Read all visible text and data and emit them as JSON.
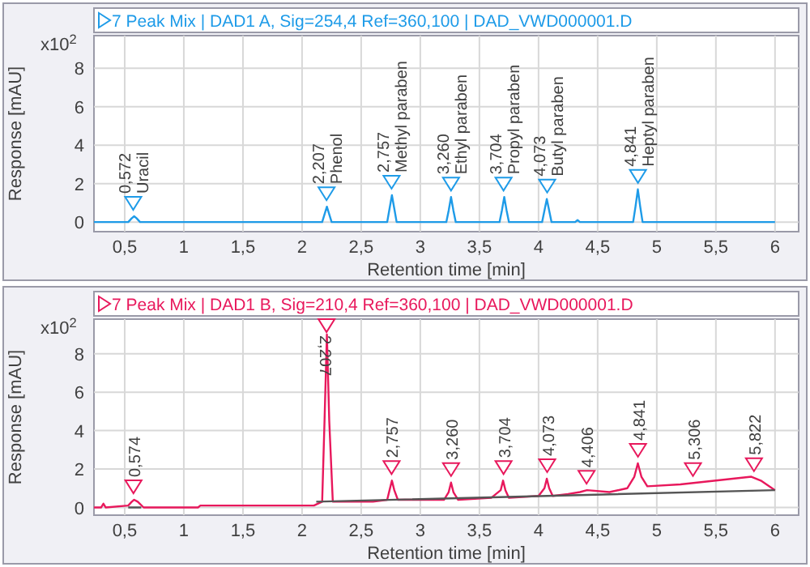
{
  "chart_data": [
    {
      "type": "line",
      "title": "7 Peak Mix | DAD1 A, Sig=254,4 Ref=360,100 | DAD_VWD000001.D",
      "xlabel": "Retention time [min]",
      "ylabel": "Response [mAU]",
      "xlim": [
        0.24,
        6.2
      ],
      "xticks": [
        {
          "value": 0.5,
          "label": "0,5"
        },
        1,
        {
          "value": 1.5,
          "label": "1,5"
        },
        2,
        {
          "value": 2.5,
          "label": "2,5"
        },
        3,
        {
          "value": 3.5,
          "label": "3,5"
        },
        4,
        {
          "value": 4.5,
          "label": "4,5"
        },
        5,
        {
          "value": 5.5,
          "label": "5,5"
        },
        6
      ],
      "ylim": [
        -0.5,
        9.7
      ],
      "yticks": [
        0,
        2,
        4,
        6,
        8
      ],
      "grid": true,
      "series": [
        {
          "color": "#1e9be8",
          "x": [
            0.24,
            0.53,
            0.56,
            0.58,
            0.6,
            0.63,
            2.17,
            2.19,
            2.21,
            2.23,
            2.25,
            2.72,
            2.74,
            2.76,
            2.78,
            2.8,
            3.22,
            3.24,
            3.26,
            3.28,
            3.3,
            3.67,
            3.69,
            3.71,
            3.73,
            3.75,
            4.03,
            4.05,
            4.07,
            4.09,
            4.11,
            4.31,
            4.33,
            4.35,
            4.8,
            4.82,
            4.84,
            4.86,
            4.88,
            6.0
          ],
          "values": [
            0,
            0,
            0.2,
            0.3,
            0.2,
            0,
            0,
            0.4,
            0.8,
            0.4,
            0,
            0,
            0.7,
            1.4,
            0.7,
            0,
            0,
            0.6,
            1.3,
            0.6,
            0,
            0,
            0.6,
            1.3,
            0.6,
            0,
            0,
            0.6,
            1.2,
            0.6,
            0,
            0,
            0.1,
            0,
            0,
            0.8,
            1.7,
            0.8,
            0,
            0
          ]
        }
      ],
      "annotations": [
        "x10$^{2}$",
        {
          "text": "0,572\nUracil",
          "x": 0.572,
          "y": 0.3
        },
        {
          "text": "2,207\nPhenol",
          "x": 2.207,
          "y": 0.8
        },
        {
          "text": "2,757\nMethyl paraben",
          "x": 2.757,
          "y": 1.4
        },
        {
          "text": "3,260\nEthyl paraben",
          "x": 3.26,
          "y": 1.3
        },
        {
          "text": "3,704\nPropyl paraben",
          "x": 3.704,
          "y": 1.3
        },
        {
          "text": "4,073\nButyl paraben",
          "x": 4.073,
          "y": 1.2
        },
        {
          "text": "4,841\nHeptyl paraben",
          "x": 4.841,
          "y": 1.7
        }
      ]
    },
    {
      "type": "line",
      "title": "7 Peak Mix | DAD1 B, Sig=210,4 Ref=360,100 | DAD_VWD000001.D",
      "xlabel": "Retention time [min]",
      "ylabel": "Response [mAU]",
      "xlim": [
        0.24,
        6.2
      ],
      "xticks": [
        {
          "value": 0.5,
          "label": "0,5"
        },
        1,
        {
          "value": 1.5,
          "label": "1,5"
        },
        2,
        {
          "value": 2.5,
          "label": "2,5"
        },
        3,
        {
          "value": 3.5,
          "label": "3,5"
        },
        4,
        {
          "value": 4.5,
          "label": "4,5"
        },
        5,
        {
          "value": 5.5,
          "label": "5,5"
        },
        6
      ],
      "ylim": [
        -0.4,
        9.8
      ],
      "yticks": [
        0,
        2,
        4,
        6,
        8
      ],
      "grid": true,
      "series": [
        {
          "color": "#e8185c",
          "x": [
            0.24,
            0.3,
            0.32,
            0.34,
            0.53,
            0.56,
            0.58,
            0.61,
            0.66,
            1.12,
            1.14,
            2.1,
            2.17,
            2.19,
            2.21,
            2.23,
            2.26,
            2.6,
            2.72,
            2.74,
            2.76,
            2.78,
            2.81,
            3.2,
            3.24,
            3.26,
            3.28,
            3.32,
            3.6,
            3.68,
            3.7,
            3.72,
            3.75,
            4.0,
            4.05,
            4.07,
            4.09,
            4.12,
            4.25,
            4.35,
            4.41,
            4.6,
            4.75,
            4.81,
            4.84,
            4.87,
            4.92,
            5.2,
            5.5,
            5.8,
            5.88,
            6.0
          ],
          "values": [
            0,
            0,
            0.2,
            0,
            0.1,
            0.3,
            0.4,
            0.3,
            0,
            0,
            0.1,
            0.1,
            0.3,
            4.5,
            9.0,
            4.5,
            0.3,
            0.3,
            0.4,
            0.9,
            1.4,
            0.9,
            0.4,
            0.4,
            0.8,
            1.3,
            0.8,
            0.4,
            0.5,
            0.9,
            1.4,
            0.9,
            0.5,
            0.6,
            1.0,
            1.5,
            1.0,
            0.6,
            0.7,
            0.8,
            0.9,
            0.8,
            1.0,
            1.6,
            2.3,
            1.6,
            1.1,
            1.2,
            1.4,
            1.6,
            1.4,
            0.9
          ]
        },
        {
          "color": "#555555",
          "x": [
            0.53,
            0.64,
            0.65,
            2.12,
            6.0
          ],
          "values": [
            0,
            0,
            null,
            0.3,
            0.9
          ]
        }
      ],
      "annotations": [
        "x10$^{2}$",
        {
          "text": "0,574",
          "x": 0.574,
          "y": 0.4
        },
        {
          "text": "2,207",
          "x": 2.207,
          "y": 9.0
        },
        {
          "text": "2,757",
          "x": 2.757,
          "y": 1.4
        },
        {
          "text": "3,260",
          "x": 3.26,
          "y": 1.3
        },
        {
          "text": "3,704",
          "x": 3.704,
          "y": 1.4
        },
        {
          "text": "4,073",
          "x": 4.073,
          "y": 1.5
        },
        {
          "text": "4,406",
          "x": 4.406,
          "y": 0.9
        },
        {
          "text": "4,841",
          "x": 4.841,
          "y": 2.3
        },
        {
          "text": "5,306",
          "x": 5.306,
          "y": 1.3
        },
        {
          "text": "5,822",
          "x": 5.822,
          "y": 1.55
        }
      ]
    }
  ]
}
